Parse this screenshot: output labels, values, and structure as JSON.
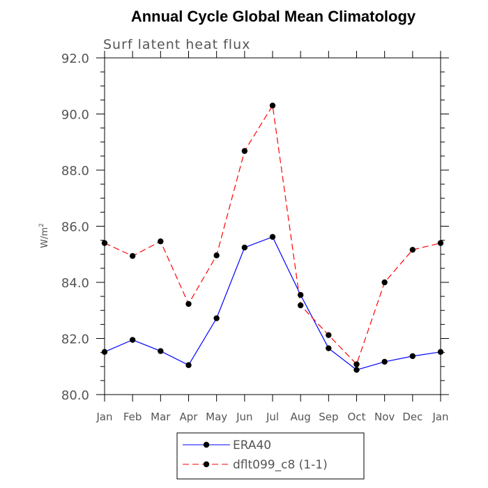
{
  "chart_data": {
    "type": "line",
    "title": "Annual Cycle Global Mean Climatology",
    "subtitle": "Surf latent heat flux",
    "ylabel": "W/m",
    "ylabel_sup": "2",
    "xlabel": "",
    "categories": [
      "Jan",
      "Feb",
      "Mar",
      "Apr",
      "May",
      "Jun",
      "Jul",
      "Aug",
      "Sep",
      "Oct",
      "Nov",
      "Dec",
      "Jan"
    ],
    "ylim": [
      80.0,
      92.0
    ],
    "yticks": [
      "80.0",
      "82.0",
      "84.0",
      "86.0",
      "88.0",
      "90.0",
      "92.0"
    ],
    "series": [
      {
        "name": "ERA40",
        "color": "#0000ff",
        "style": "solid",
        "marker": "filled-circle",
        "values": [
          81.52,
          81.95,
          81.55,
          81.05,
          82.72,
          85.24,
          85.62,
          83.55,
          81.65,
          80.88,
          81.17,
          81.37,
          81.52
        ]
      },
      {
        "name": "dflt099_c8 (1-1)",
        "color": "#ff0000",
        "style": "dashed",
        "marker": "filled-circle",
        "values": [
          85.4,
          84.94,
          85.46,
          83.23,
          84.96,
          88.68,
          90.3,
          83.18,
          82.12,
          81.08,
          84.0,
          85.16,
          85.4
        ]
      }
    ],
    "grid": false,
    "legend_position": "bottom-center"
  }
}
